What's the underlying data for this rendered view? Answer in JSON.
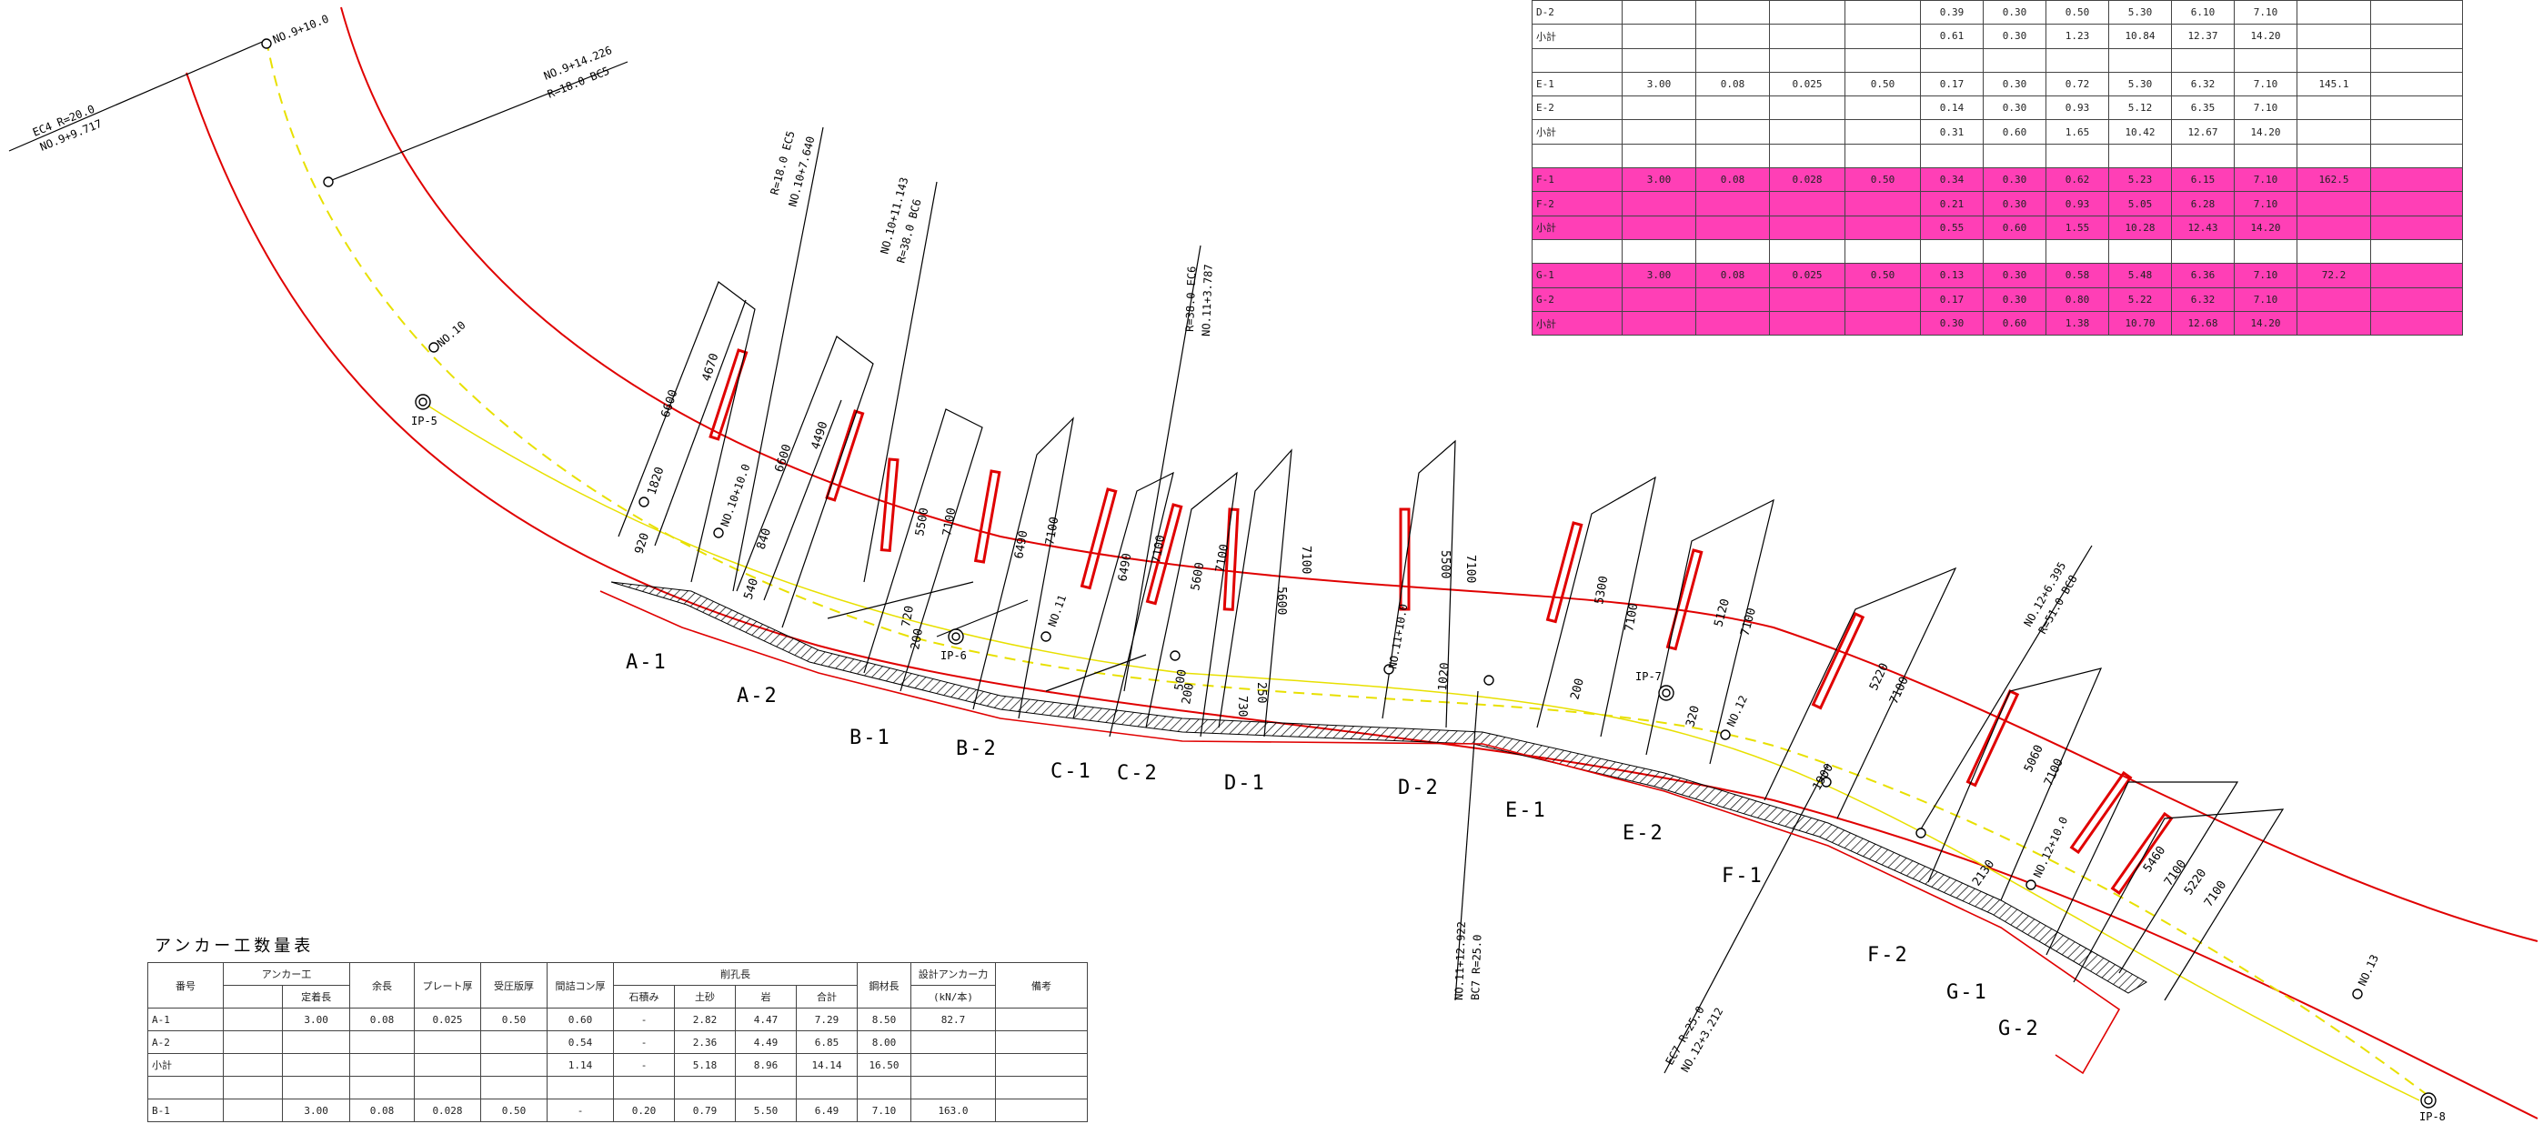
{
  "section_labels": [
    "A-1",
    "A-2",
    "B-1",
    "B-2",
    "C-1",
    "C-2",
    "D-1",
    "D-2",
    "E-1",
    "E-2",
    "F-1",
    "F-2",
    "G-1",
    "G-2"
  ],
  "stations": {
    "no9_10": "NO.9+10.0",
    "no10": "NO.10",
    "no10_10": "NO.10+10.0",
    "no11": "NO.11",
    "no11_10": "NO.11+10.0",
    "no12": "NO.12",
    "no12_10": "NO.12+10.0",
    "no13": "NO.13"
  },
  "ip_labels": [
    "IP-5",
    "IP-6",
    "IP-7",
    "IP-8"
  ],
  "curve_points": {
    "ec4_a": "EC4   R=20.0",
    "ec4_b": "NO.9+9.717",
    "bc5_a": "NO.9+14.226",
    "bc5_b": "R=18.0   BC5",
    "ec5_a": "R=18.0   EC5",
    "ec5_b": "NO.10+7.640",
    "bc6_a": "NO.10+11.143",
    "bc6_b": "R=38.0   BC6",
    "ec6_a": "R=38.0   EC6",
    "ec6_b": "NO.11+3.787",
    "bc7_a": "NO.11+12.922",
    "bc7_b": "BC7   R=25.0",
    "bc8_a": "NO.12+6.395",
    "bc8_b": "R=51.0   BC8",
    "ec7_a": "EC7   R=25.0",
    "ec7_b": "NO.12+3.212"
  },
  "dim_labels": [
    "6600",
    "4670",
    "6600",
    "4490",
    "5500",
    "7100",
    "6490",
    "7100",
    "6490",
    "7100",
    "5600",
    "7100",
    "5600",
    "7100",
    "5500",
    "7100",
    "5300",
    "7100",
    "5120",
    "7100",
    "5220",
    "7100",
    "5060",
    "7100",
    "5460",
    "7100",
    "5220",
    "7100",
    "1820",
    "920",
    "540",
    "840",
    "720",
    "200",
    "500",
    "200",
    "730",
    "250",
    "1020",
    "200",
    "320",
    "1900",
    "2130"
  ],
  "table_right": {
    "rows": [
      {
        "pink": false,
        "cells": [
          "D-2",
          "",
          "",
          "",
          "",
          "0.39",
          "0.30",
          "0.50",
          "5.30",
          "6.10",
          "7.10",
          "",
          ""
        ]
      },
      {
        "pink": false,
        "cells": [
          "小計",
          "",
          "",
          "",
          "",
          "0.61",
          "0.30",
          "1.23",
          "10.84",
          "12.37",
          "14.20",
          "",
          ""
        ]
      },
      {
        "pink": false,
        "blank": true,
        "cells": [
          "",
          "",
          "",
          "",
          "",
          "",
          "",
          "",
          "",
          "",
          "",
          "",
          ""
        ]
      },
      {
        "pink": false,
        "cells": [
          "E-1",
          "3.00",
          "0.08",
          "0.025",
          "0.50",
          "0.17",
          "0.30",
          "0.72",
          "5.30",
          "6.32",
          "7.10",
          "145.1",
          ""
        ]
      },
      {
        "pink": false,
        "cells": [
          "E-2",
          "",
          "",
          "",
          "",
          "0.14",
          "0.30",
          "0.93",
          "5.12",
          "6.35",
          "7.10",
          "",
          ""
        ]
      },
      {
        "pink": false,
        "cells": [
          "小計",
          "",
          "",
          "",
          "",
          "0.31",
          "0.60",
          "1.65",
          "10.42",
          "12.67",
          "14.20",
          "",
          ""
        ]
      },
      {
        "pink": false,
        "blank": true,
        "cells": [
          "",
          "",
          "",
          "",
          "",
          "",
          "",
          "",
          "",
          "",
          "",
          "",
          ""
        ]
      },
      {
        "pink": true,
        "cells": [
          "F-1",
          "3.00",
          "0.08",
          "0.028",
          "0.50",
          "0.34",
          "0.30",
          "0.62",
          "5.23",
          "6.15",
          "7.10",
          "162.5",
          ""
        ]
      },
      {
        "pink": true,
        "cells": [
          "F-2",
          "",
          "",
          "",
          "",
          "0.21",
          "0.30",
          "0.93",
          "5.05",
          "6.28",
          "7.10",
          "",
          ""
        ]
      },
      {
        "pink": true,
        "cells": [
          "小計",
          "",
          "",
          "",
          "",
          "0.55",
          "0.60",
          "1.55",
          "10.28",
          "12.43",
          "14.20",
          "",
          ""
        ]
      },
      {
        "pink": false,
        "blank": true,
        "cells": [
          "",
          "",
          "",
          "",
          "",
          "",
          "",
          "",
          "",
          "",
          "",
          "",
          ""
        ]
      },
      {
        "pink": true,
        "cells": [
          "G-1",
          "3.00",
          "0.08",
          "0.025",
          "0.50",
          "0.13",
          "0.30",
          "0.58",
          "5.48",
          "6.36",
          "7.10",
          "72.2",
          ""
        ]
      },
      {
        "pink": true,
        "cells": [
          "G-2",
          "",
          "",
          "",
          "",
          "0.17",
          "0.30",
          "0.80",
          "5.22",
          "6.32",
          "7.10",
          "",
          ""
        ]
      },
      {
        "pink": true,
        "cells": [
          "小計",
          "",
          "",
          "",
          "",
          "0.30",
          "0.60",
          "1.38",
          "10.70",
          "12.68",
          "14.20",
          "",
          ""
        ]
      }
    ]
  },
  "table_left": {
    "title": "アンカー工数量表",
    "header1": [
      "番号",
      "アンカー工",
      "余長",
      "プレート厚",
      "受圧版厚",
      "間詰コン厚",
      "削孔長",
      "鋼材長",
      "設計アンカー力",
      "備考"
    ],
    "header2": [
      "定着長",
      "石積み",
      "土砂",
      "岩",
      "合計",
      "(kN/本)"
    ],
    "rows": [
      [
        "A-1",
        "",
        "3.00",
        "0.08",
        "0.025",
        "0.50",
        "0.60",
        "-",
        "2.82",
        "4.47",
        "7.29",
        "8.50",
        "82.7",
        ""
      ],
      [
        "A-2",
        "",
        "",
        "",
        "",
        "",
        "0.54",
        "-",
        "2.36",
        "4.49",
        "6.85",
        "8.00",
        "",
        ""
      ],
      [
        "小計",
        "",
        "",
        "",
        "",
        "",
        "1.14",
        "-",
        "5.18",
        "8.96",
        "14.14",
        "16.50",
        "",
        ""
      ],
      [
        "",
        "",
        "",
        "",
        "",
        "",
        "",
        "",
        "",
        "",
        "",
        "",
        "",
        ""
      ],
      [
        "B-1",
        "",
        "3.00",
        "0.08",
        "0.028",
        "0.50",
        "-",
        "0.20",
        "0.79",
        "5.50",
        "6.49",
        "7.10",
        "163.0",
        ""
      ]
    ]
  }
}
